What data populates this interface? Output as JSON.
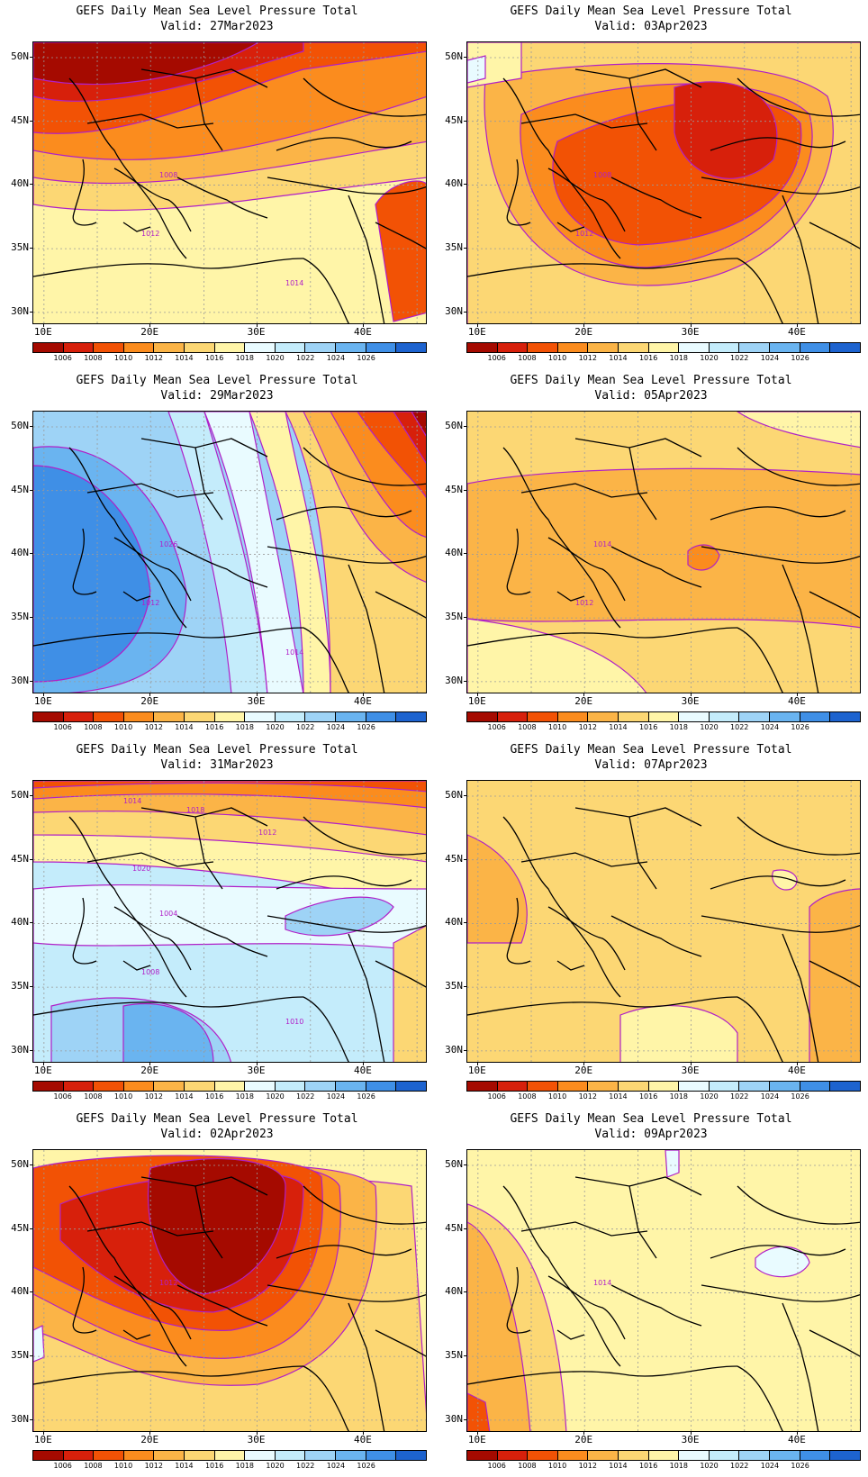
{
  "panels": [
    {
      "title": "GEFS Daily Mean Sea Level Pressure Total",
      "valid": "Valid: 27Mar2023",
      "scheme": "low-deep",
      "contour_labels": [
        "1008",
        "1012",
        "1014"
      ]
    },
    {
      "title": "GEFS Daily Mean Sea Level Pressure Total",
      "valid": "Valid: 03Apr2023",
      "scheme": "low-moderate",
      "contour_labels": [
        "1008",
        "1012"
      ]
    },
    {
      "title": "GEFS Daily Mean Sea Level Pressure Total",
      "valid": "Valid: 29Mar2023",
      "scheme": "high",
      "contour_labels": [
        "1026",
        "1012",
        "1014"
      ]
    },
    {
      "title": "GEFS Daily Mean Sea Level Pressure Total",
      "valid": "Valid: 05Apr2023",
      "scheme": "flat-1012",
      "contour_labels": [
        "1014",
        "1012"
      ]
    },
    {
      "title": "GEFS Daily Mean Sea Level Pressure Total",
      "valid": "Valid: 31Mar2023",
      "scheme": "high-moderate",
      "contour_labels": [
        "1004",
        "1008",
        "1010",
        "1012",
        "1014",
        "1018",
        "1020"
      ]
    },
    {
      "title": "GEFS Daily Mean Sea Level Pressure Total",
      "valid": "Valid: 07Apr2023",
      "scheme": "flat-1013",
      "contour_labels": []
    },
    {
      "title": "GEFS Daily Mean Sea Level Pressure Total",
      "valid": "Valid: 02Apr2023",
      "scheme": "low-deep2",
      "contour_labels": [
        "1012"
      ]
    },
    {
      "title": "GEFS Daily Mean Sea Level Pressure Total",
      "valid": "Valid: 09Apr2023",
      "scheme": "flat-1014",
      "contour_labels": [
        "1014"
      ]
    }
  ],
  "lat_labels": [
    "50N",
    "45N",
    "40N",
    "35N",
    "30N"
  ],
  "lon_labels": [
    "10E",
    "20E",
    "30E",
    "40E"
  ],
  "colorbar": {
    "labels": [
      "1006",
      "1008",
      "1010",
      "1012",
      "1014",
      "1016",
      "1018",
      "1020",
      "1022",
      "1024",
      "1026"
    ],
    "colors": [
      "#a50a00",
      "#d7200b",
      "#f25205",
      "#fb8c1e",
      "#fbb447",
      "#fcd774",
      "#fff5a8",
      "#e9fbff",
      "#c4ecfb",
      "#9ed3f6",
      "#6ab4f0",
      "#3f8fe6",
      "#1d63cf"
    ]
  }
}
